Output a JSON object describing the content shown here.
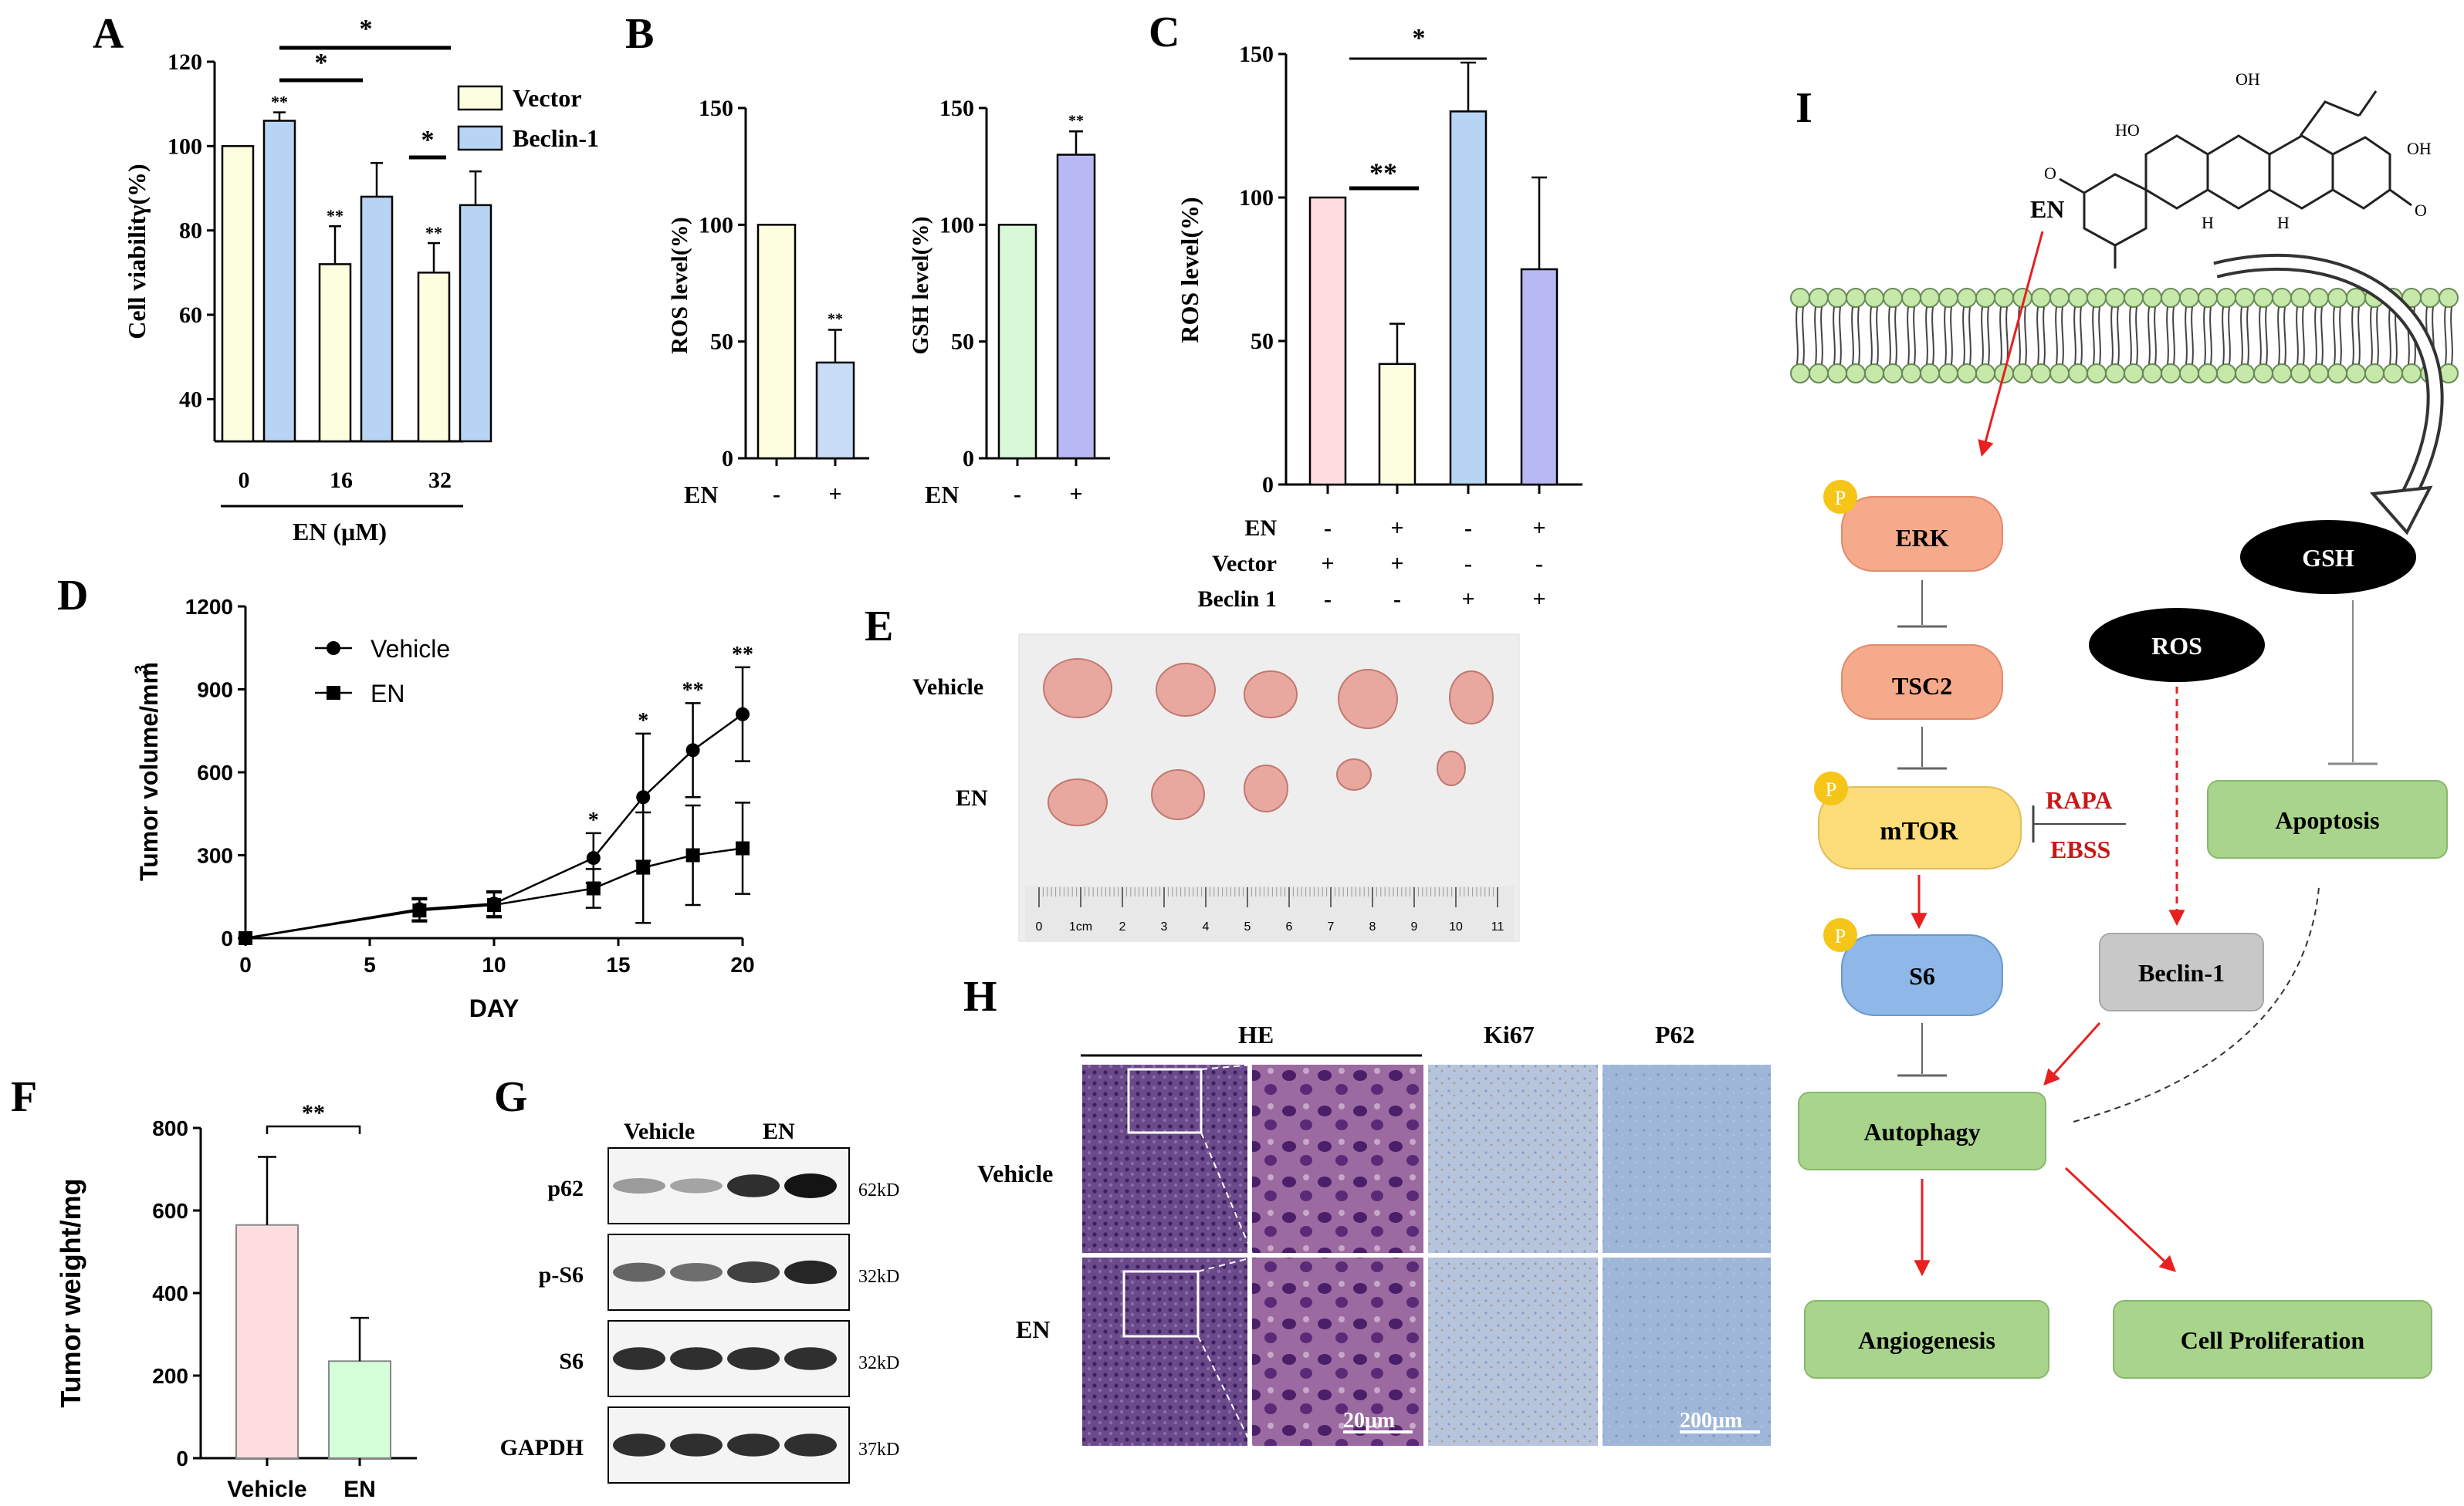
{
  "colors": {
    "vector": "#fdfde0",
    "beclin": "#b8d4f4",
    "ros_b": "#fdfde0",
    "ros_b_en": "#c8dcf6",
    "gsh_b": "#d8f8d8",
    "gsh_b_en": "#b8b8f4",
    "c1": "#fddde0",
    "c2": "#fdfde0",
    "c3": "#b8d4f4",
    "c4": "#b8b8f4",
    "f_vehicle": "#fddde0",
    "f_en": "#d4ffd8",
    "pink_node": "#f5aa8c",
    "yellow_node": "#fddc7a",
    "blue_node": "#8fb8e8",
    "green_node": "#a8d48c",
    "gray_node": "#c8c8c8",
    "red": "#e82020",
    "phospho": "#f5c518",
    "membrane": "#c6e8a8"
  },
  "chart_data": [
    {
      "panel": "A",
      "type": "bar",
      "ylabel": "Cell viabilitγ(%)",
      "xlabel": "EN (μM)",
      "categories": [
        "0",
        "16",
        "32"
      ],
      "series": [
        {
          "name": "Vector",
          "values": [
            100,
            72,
            70
          ],
          "errors": [
            0,
            9,
            7
          ],
          "marks": [
            "",
            "**",
            "**"
          ]
        },
        {
          "name": "Beclin-1",
          "values": [
            106,
            88,
            86
          ],
          "errors": [
            2,
            8,
            8
          ],
          "marks": [
            "**",
            "",
            ""
          ]
        }
      ],
      "yticks": [
        "40",
        "60",
        "80",
        "100",
        "120"
      ],
      "ylim": [
        30,
        120
      ],
      "significance": [
        "*",
        "*",
        "*"
      ]
    },
    {
      "panel": "B1",
      "type": "bar",
      "ylabel": "ROS level(%)",
      "categories": [
        "-",
        "+"
      ],
      "row_label": "EN",
      "values": [
        100,
        41
      ],
      "errors": [
        0,
        14
      ],
      "marks": [
        "",
        "**"
      ],
      "yticks": [
        "0",
        "50",
        "100",
        "150"
      ],
      "ylim": [
        0,
        150
      ]
    },
    {
      "panel": "B2",
      "type": "bar",
      "ylabel": "GSH level(%)",
      "categories": [
        "-",
        "+"
      ],
      "row_label": "EN",
      "values": [
        100,
        130
      ],
      "errors": [
        0,
        10
      ],
      "marks": [
        "",
        "**"
      ],
      "yticks": [
        "0",
        "50",
        "100",
        "150"
      ],
      "ylim": [
        0,
        150
      ]
    },
    {
      "panel": "C",
      "type": "bar",
      "ylabel": "ROS level(%)",
      "values": [
        100,
        42,
        130,
        75
      ],
      "errors": [
        0,
        14,
        17,
        32
      ],
      "yticks": [
        "0",
        "50",
        "100",
        "150"
      ],
      "ylim": [
        0,
        150
      ],
      "rows": [
        {
          "label": "EN",
          "marks": [
            "-",
            "+",
            "-",
            "+"
          ]
        },
        {
          "label": "Vector",
          "marks": [
            "+",
            "+",
            "-",
            "-"
          ]
        },
        {
          "label": "Beclin 1",
          "marks": [
            "-",
            "-",
            "+",
            "+"
          ]
        }
      ],
      "significance": [
        "**",
        "*"
      ]
    },
    {
      "panel": "D",
      "type": "line",
      "ylabel": "Tumor volume/mm",
      "ylabel_sup": "3",
      "xlabel": "DAY",
      "x": [
        0,
        7,
        10,
        14,
        16,
        18,
        20
      ],
      "series": [
        {
          "name": "Vehicle",
          "values": [
            0,
            105,
            125,
            290,
            510,
            680,
            810
          ],
          "errors": [
            0,
            40,
            45,
            90,
            230,
            170,
            170
          ]
        },
        {
          "name": "EN",
          "values": [
            0,
            100,
            120,
            180,
            255,
            300,
            325
          ],
          "errors": [
            0,
            40,
            45,
            70,
            200,
            180,
            165
          ]
        }
      ],
      "marks": [
        "",
        "",
        "",
        "*",
        "*",
        "**",
        "**"
      ],
      "xticks": [
        "0",
        "5",
        "10",
        "15",
        "20"
      ],
      "yticks": [
        "0",
        "300",
        "600",
        "900",
        "1200"
      ],
      "xlim": [
        0,
        20
      ],
      "ylim": [
        0,
        1200
      ]
    },
    {
      "panel": "F",
      "type": "bar",
      "ylabel": "Tumor weight/mg",
      "categories": [
        "Vehicle",
        "EN"
      ],
      "values": [
        565,
        235
      ],
      "errors": [
        165,
        105
      ],
      "yticks": [
        "0",
        "200",
        "400",
        "600",
        "800"
      ],
      "ylim": [
        0,
        800
      ],
      "significance": "**"
    }
  ],
  "labels": {
    "A": "A",
    "B": "B",
    "C": "C",
    "D": "D",
    "E": "E",
    "F": "F",
    "G": "G",
    "H": "H",
    "I": "I"
  },
  "panelE": {
    "row1": "Vehicle",
    "row2": "EN",
    "ruler_ticks": [
      "0",
      "1cm",
      "2",
      "3",
      "4",
      "5",
      "6",
      "7",
      "8",
      "9",
      "10",
      "11"
    ]
  },
  "panelG": {
    "col1": "Vehicle",
    "col2": "EN",
    "rows": [
      {
        "protein": "p62",
        "size": "62kD"
      },
      {
        "protein": "p-S6",
        "size": "32kD"
      },
      {
        "protein": "S6",
        "size": "32kD"
      },
      {
        "protein": "GAPDH",
        "size": "37kD"
      }
    ]
  },
  "panelH": {
    "col_he": "HE",
    "col_ki67": "Ki67",
    "col_p62": "P62",
    "row1": "Vehicle",
    "row2": "EN",
    "scale1": "20μm",
    "scale2": "200μm"
  },
  "panelI": {
    "en": "EN",
    "p": "P",
    "erk": "ERK",
    "tsc2": "TSC2",
    "mtor": "mTOR",
    "s6": "S6",
    "rapa": "RAPA",
    "ebss": "EBSS",
    "gsh": "GSH",
    "ros": "ROS",
    "apoptosis": "Apoptosis",
    "beclin": "Beclin-1",
    "autophagy": "Autophagy",
    "angiogenesis": "Angiogenesis",
    "proliferation": "Cell Proliferation",
    "struct_o": "O",
    "struct_h": "H",
    "struct_oh": "OH",
    "struct_ho": "HO"
  }
}
